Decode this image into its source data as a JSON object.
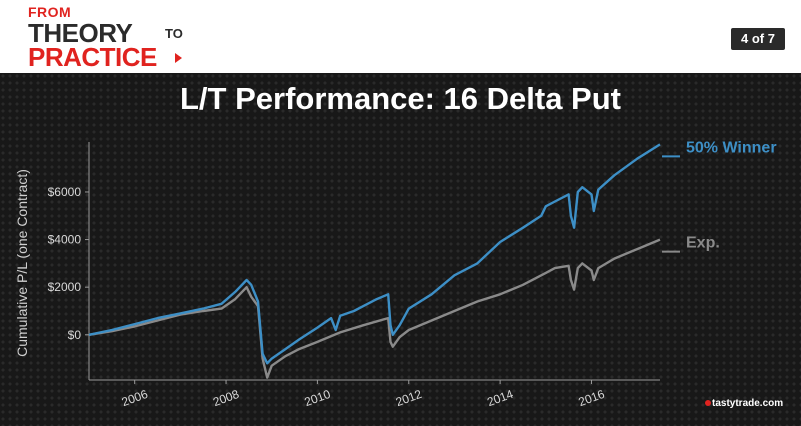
{
  "header": {
    "logo": {
      "line1": "FROM",
      "line2": "THEORY",
      "line3": "TO",
      "line4": "PRACTICE"
    },
    "page_indicator": "4 of 7"
  },
  "slide": {
    "title": "L/T Performance: 16 Delta Put"
  },
  "brand": "tastytrade.com",
  "colors": {
    "accent_red": "#e0231f",
    "series_blue": "#3d8fc6",
    "series_gray": "#8a8a8a"
  },
  "chart_data": {
    "type": "line",
    "title": "L/T Performance: 16 Delta Put",
    "ylabel": "Cumulative P/L (one Contract)",
    "xlabel": "",
    "xlim": [
      2005.0,
      2017.5
    ],
    "ylim": [
      -1900,
      8100
    ],
    "x_ticks": [
      2006,
      2008,
      2010,
      2012,
      2014,
      2016
    ],
    "x_tick_labels": [
      "2006",
      "2008",
      "2010",
      "2012",
      "2014",
      "2016"
    ],
    "y_ticks": [
      0,
      2000,
      4000,
      6000
    ],
    "y_tick_labels": [
      "$0",
      "$2000",
      "$4000",
      "$6000"
    ],
    "grid": false,
    "legend": "right",
    "series": [
      {
        "name": "50% Winner",
        "color": "#3d8fc6",
        "x": [
          2005.0,
          2005.5,
          2006.0,
          2006.5,
          2007.0,
          2007.5,
          2007.9,
          2008.2,
          2008.45,
          2008.55,
          2008.7,
          2008.8,
          2008.9,
          2009.0,
          2009.3,
          2009.6,
          2010.0,
          2010.3,
          2010.4,
          2010.5,
          2010.8,
          2011.0,
          2011.3,
          2011.55,
          2011.6,
          2011.65,
          2011.8,
          2012.0,
          2012.5,
          2013.0,
          2013.5,
          2014.0,
          2014.5,
          2014.9,
          2015.0,
          2015.2,
          2015.5,
          2015.55,
          2015.62,
          2015.7,
          2015.8,
          2016.0,
          2016.05,
          2016.15,
          2016.5,
          2017.0,
          2017.5
        ],
        "y": [
          0,
          200,
          450,
          700,
          900,
          1100,
          1300,
          1800,
          2300,
          2100,
          1400,
          -800,
          -1200,
          -1000,
          -600,
          -200,
          300,
          700,
          200,
          800,
          1000,
          1200,
          1500,
          1700,
          400,
          0,
          400,
          1100,
          1700,
          2500,
          3000,
          3900,
          4500,
          5000,
          5400,
          5600,
          5900,
          5000,
          4500,
          6000,
          6200,
          5900,
          5200,
          6100,
          6700,
          7400,
          8000
        ]
      },
      {
        "name": "Exp.",
        "color": "#8a8a8a",
        "x": [
          2005.0,
          2005.5,
          2006.0,
          2006.5,
          2007.0,
          2007.5,
          2007.9,
          2008.2,
          2008.45,
          2008.55,
          2008.7,
          2008.8,
          2008.9,
          2009.0,
          2009.3,
          2009.6,
          2010.0,
          2010.5,
          2011.0,
          2011.55,
          2011.6,
          2011.65,
          2011.8,
          2012.0,
          2012.5,
          2013.0,
          2013.5,
          2014.0,
          2014.5,
          2015.0,
          2015.2,
          2015.5,
          2015.55,
          2015.62,
          2015.7,
          2015.8,
          2016.0,
          2016.05,
          2016.15,
          2016.5,
          2017.0,
          2017.5
        ],
        "y": [
          0,
          150,
          350,
          600,
          850,
          1000,
          1100,
          1500,
          2000,
          1600,
          1200,
          -1000,
          -1800,
          -1300,
          -900,
          -600,
          -300,
          100,
          400,
          700,
          -300,
          -500,
          -100,
          200,
          600,
          1000,
          1400,
          1700,
          2100,
          2600,
          2800,
          2900,
          2300,
          1900,
          2800,
          3000,
          2700,
          2300,
          2800,
          3200,
          3600,
          4000
        ]
      }
    ]
  }
}
